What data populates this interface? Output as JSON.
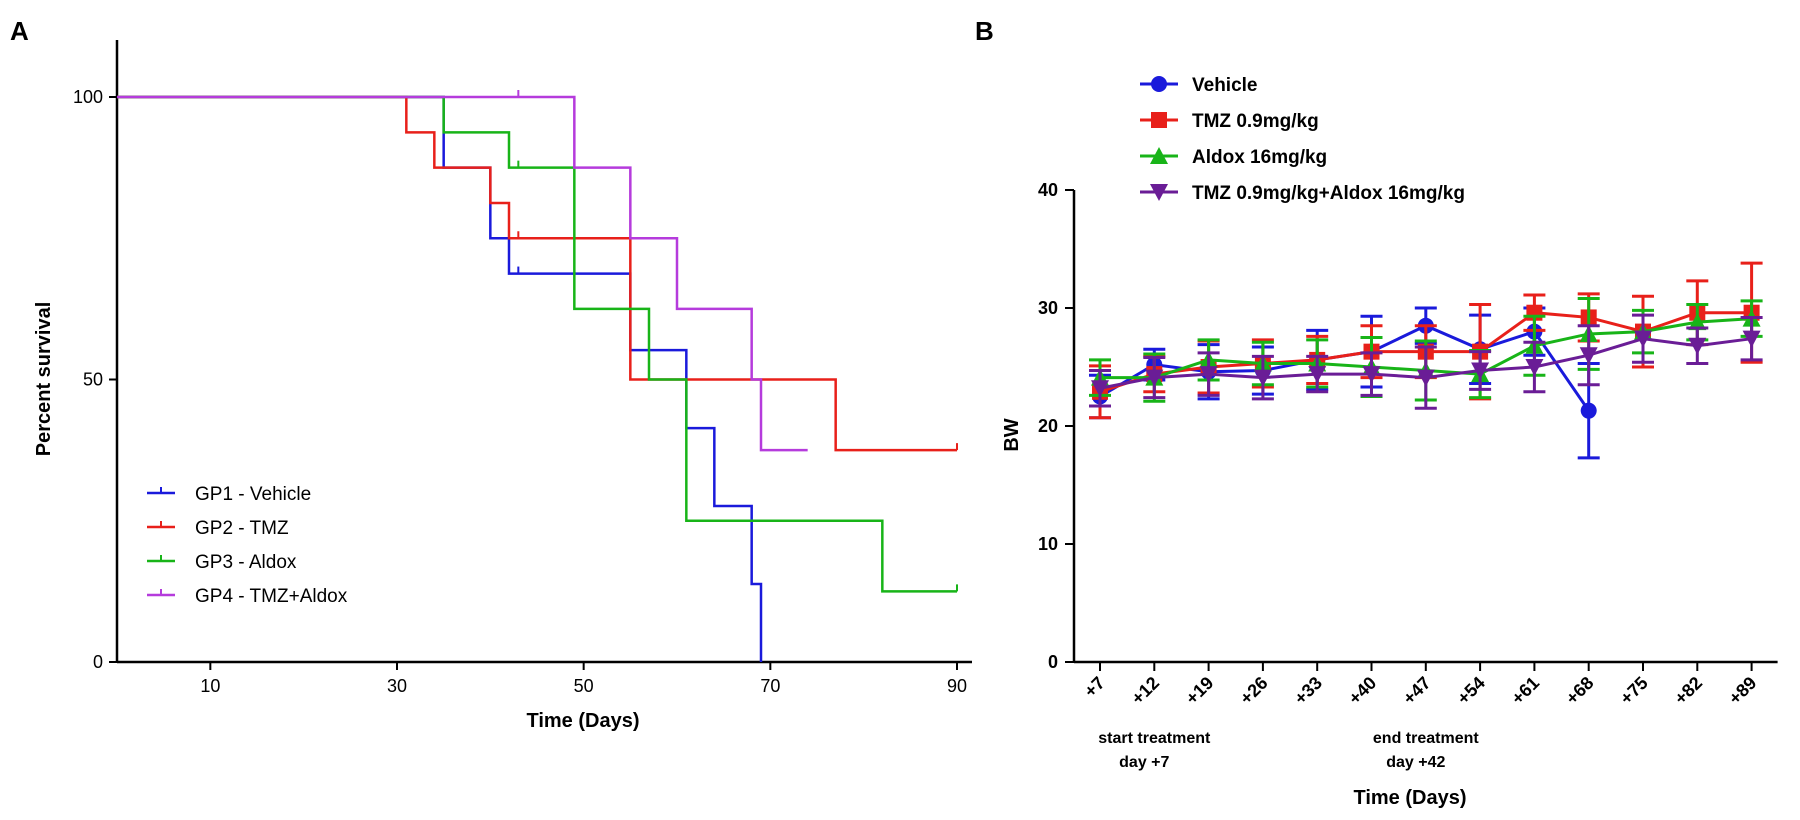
{
  "chart_data": [
    {
      "panel": "A",
      "type": "line",
      "subtype": "kaplan-meier",
      "xlabel": "Time (Days)",
      "ylabel": "Percent survival",
      "xlim": [
        0,
        90
      ],
      "ylim": [
        0,
        100
      ],
      "xticks": [
        "10",
        "30",
        "50",
        "70",
        "90"
      ],
      "xtick_values": [
        10,
        30,
        50,
        70,
        90
      ],
      "yticks": [
        "0",
        "50",
        "100"
      ],
      "ytick_values": [
        0,
        50,
        100
      ],
      "legend_position": "bottom-left",
      "series": [
        {
          "name": "GP1 - Vehicle",
          "color": "#1a1adb",
          "steps": [
            [
              0,
              100
            ],
            [
              35,
              87.5
            ],
            [
              40,
              75
            ],
            [
              42,
              68.75
            ],
            [
              55,
              55.2
            ],
            [
              61,
              41.4
            ],
            [
              64,
              27.6
            ],
            [
              68,
              13.8
            ],
            [
              69,
              0
            ]
          ],
          "end": 69,
          "censored": [
            [
              43,
              68.75
            ]
          ]
        },
        {
          "name": "GP2 - TMZ",
          "color": "#e8201a",
          "steps": [
            [
              0,
              100
            ],
            [
              31,
              93.75
            ],
            [
              34,
              87.5
            ],
            [
              40,
              81.25
            ],
            [
              42,
              75
            ],
            [
              55,
              50
            ],
            [
              77,
              37.5
            ]
          ],
          "end": 90,
          "censored": [
            [
              43,
              75
            ],
            [
              90,
              37.5
            ]
          ]
        },
        {
          "name": "GP3 - Aldox",
          "color": "#18b418",
          "steps": [
            [
              0,
              100
            ],
            [
              35,
              93.75
            ],
            [
              42,
              87.5
            ],
            [
              49,
              62.5
            ],
            [
              57,
              50
            ],
            [
              61,
              25
            ],
            [
              82,
              12.5
            ]
          ],
          "end": 90,
          "censored": [
            [
              43,
              87.5
            ],
            [
              90,
              12.5
            ]
          ]
        },
        {
          "name": "GP4 - TMZ+Aldox",
          "color": "#b53bdc",
          "steps": [
            [
              0,
              100
            ],
            [
              49,
              87.5
            ],
            [
              55,
              75
            ],
            [
              60,
              62.5
            ],
            [
              68,
              50
            ],
            [
              69,
              37.5
            ]
          ],
          "end": 74,
          "censored": [
            [
              43,
              100
            ]
          ]
        }
      ]
    },
    {
      "panel": "B",
      "type": "line",
      "xlabel": "Time (Days)",
      "ylabel": "BW",
      "ylim": [
        0,
        40
      ],
      "yticks": [
        "0",
        "10",
        "20",
        "30",
        "40"
      ],
      "ytick_values": [
        0,
        10,
        20,
        30,
        40
      ],
      "categories": [
        "+7",
        "+12",
        "+19",
        "+26",
        "+33",
        "+40",
        "+47",
        "+54",
        "+61",
        "+68",
        "+75",
        "+82",
        "+89"
      ],
      "legend_position": "top-left",
      "annotations": [
        {
          "at": "+12",
          "lines": [
            "start treatment",
            "day +7"
          ]
        },
        {
          "at": "+47",
          "lines": [
            "end treatment",
            "day +42"
          ]
        }
      ],
      "series": [
        {
          "name": "Vehicle",
          "color": "#1a1adb",
          "marker": "circle",
          "values": [
            22.5,
            25.2,
            24.6,
            24.7,
            25.6,
            26.3,
            28.5,
            26.5,
            28.0,
            21.3,
            null,
            null,
            null
          ],
          "errors": [
            1.8,
            1.3,
            2.3,
            2.0,
            2.5,
            3.0,
            1.5,
            2.9,
            2.0,
            4.0,
            null,
            null,
            null
          ]
        },
        {
          "name": "TMZ 0.9mg/kg",
          "color": "#e8201a",
          "marker": "square",
          "values": [
            22.9,
            24.4,
            25.0,
            25.3,
            25.6,
            26.3,
            26.3,
            26.3,
            29.6,
            29.2,
            28.0,
            29.6,
            29.6
          ],
          "errors": [
            2.2,
            1.5,
            2.2,
            2.0,
            2.0,
            2.2,
            2.2,
            4.0,
            1.5,
            2.0,
            3.0,
            2.7,
            4.2
          ]
        },
        {
          "name": "Aldox 16mg/kg",
          "color": "#18b418",
          "marker": "triangle-up",
          "values": [
            24.1,
            24.1,
            25.6,
            25.3,
            25.3,
            25.0,
            24.7,
            24.4,
            26.8,
            27.8,
            28.0,
            28.8,
            29.1
          ],
          "errors": [
            1.5,
            2.0,
            1.7,
            1.8,
            2.0,
            2.5,
            2.5,
            2.0,
            2.5,
            3.0,
            1.8,
            1.5,
            1.5
          ]
        },
        {
          "name": "TMZ 0.9mg/kg+Aldox 16mg/kg",
          "color": "#6a1d96",
          "marker": "triangle-down",
          "values": [
            23.2,
            24.1,
            24.4,
            24.1,
            24.4,
            24.4,
            24.1,
            24.7,
            25.0,
            26.0,
            27.4,
            26.8,
            27.4
          ],
          "errors": [
            1.5,
            1.7,
            1.8,
            1.8,
            1.5,
            1.8,
            2.6,
            1.6,
            2.1,
            2.5,
            2.0,
            1.5,
            1.8
          ]
        }
      ]
    }
  ]
}
